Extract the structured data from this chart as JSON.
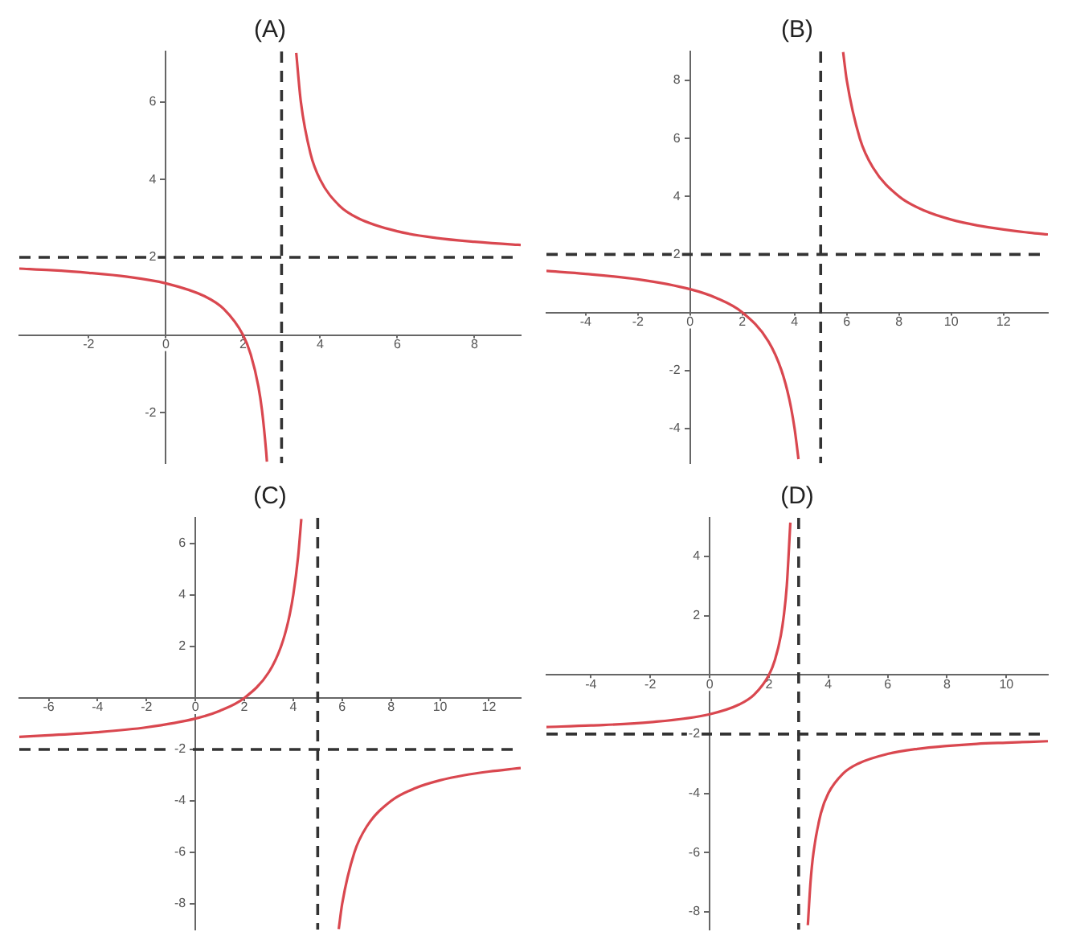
{
  "chart_data": [
    {
      "type": "line",
      "title": "(A)",
      "xlim": [
        -3.8,
        9.2
      ],
      "ylim": [
        -3.3,
        7.3
      ],
      "xticks": [
        -2,
        0,
        2,
        4,
        6,
        8
      ],
      "yticks": [
        -2,
        2,
        4,
        6
      ],
      "grid": false,
      "legend": false,
      "marker": "none",
      "line_style": "solid",
      "series": [
        {
          "color": "#d9474f",
          "x": [
            -3.8,
            -3,
            -2,
            -1,
            0,
            1,
            1.5,
            2,
            2.2,
            2.4,
            2.5,
            2.6,
            2.62
          ],
          "values": [
            1.71,
            1.67,
            1.6,
            1.5,
            1.33,
            1.0,
            0.67,
            0,
            -0.5,
            -1.33,
            -2,
            -3,
            -3.26
          ]
        },
        {
          "color": "#d9474f",
          "x": [
            3.38,
            3.5,
            3.75,
            4,
            4.5,
            5,
            6,
            7,
            8,
            9,
            9.2
          ],
          "values": [
            7.26,
            6,
            4.67,
            4,
            3.33,
            3,
            2.67,
            2.5,
            2.4,
            2.33,
            2.32
          ]
        }
      ],
      "ref_lines": [
        {
          "axis": "x",
          "value": 3,
          "color": "#333333",
          "line_style": "dashed"
        },
        {
          "axis": "y",
          "value": 2,
          "color": "#333333",
          "line_style": "dashed"
        }
      ]
    },
    {
      "type": "line",
      "title": "(B)",
      "xlim": [
        -5.5,
        13.7
      ],
      "ylim": [
        -5.2,
        9
      ],
      "xticks": [
        -4,
        -2,
        0,
        2,
        4,
        6,
        8,
        10,
        12
      ],
      "yticks": [
        -4,
        -2,
        2,
        4,
        6,
        8
      ],
      "grid": false,
      "legend": false,
      "marker": "none",
      "line_style": "solid",
      "series": [
        {
          "color": "#d9474f",
          "x": [
            -5.5,
            -4,
            -2,
            0,
            1,
            2,
            3,
            3.5,
            3.8,
            4,
            4.15
          ],
          "values": [
            1.43,
            1.33,
            1.14,
            0.8,
            0.5,
            0,
            -1,
            -2,
            -3,
            -4,
            -5.06
          ]
        },
        {
          "color": "#d9474f",
          "x": [
            5.86,
            6,
            6.5,
            7,
            8,
            9,
            10,
            11,
            12,
            13,
            13.7
          ],
          "values": [
            8.98,
            8,
            6,
            5,
            4,
            3.5,
            3.2,
            3,
            2.86,
            2.75,
            2.69
          ]
        }
      ],
      "ref_lines": [
        {
          "axis": "x",
          "value": 5,
          "color": "#333333",
          "line_style": "dashed"
        },
        {
          "axis": "y",
          "value": 2,
          "color": "#333333",
          "line_style": "dashed"
        }
      ]
    },
    {
      "type": "line",
      "title": "(C)",
      "xlim": [
        -7.2,
        13.3
      ],
      "ylim": [
        -9,
        7
      ],
      "xticks": [
        -6,
        -4,
        -2,
        0,
        2,
        4,
        6,
        8,
        10,
        12
      ],
      "yticks": [
        -8,
        -6,
        -4,
        -2,
        2,
        4,
        6
      ],
      "grid": false,
      "legend": false,
      "marker": "none",
      "line_style": "solid",
      "series": [
        {
          "color": "#d9474f",
          "x": [
            -7.2,
            -6,
            -4,
            -2,
            0,
            1,
            2,
            3,
            3.5,
            3.8,
            4,
            4.2,
            4.33
          ],
          "values": [
            -1.51,
            -1.45,
            -1.33,
            -1.14,
            -0.8,
            -0.5,
            0,
            1,
            2,
            3,
            4,
            5.5,
            6.96
          ]
        },
        {
          "color": "#d9474f",
          "x": [
            5.86,
            6,
            6.5,
            7,
            8,
            9,
            10,
            11,
            12,
            13,
            13.3
          ],
          "values": [
            -8.98,
            -8,
            -6,
            -5,
            -4,
            -3.5,
            -3.2,
            -3,
            -2.86,
            -2.75,
            -2.72
          ]
        }
      ],
      "ref_lines": [
        {
          "axis": "x",
          "value": 5,
          "color": "#333333",
          "line_style": "dashed"
        },
        {
          "axis": "y",
          "value": -2,
          "color": "#333333",
          "line_style": "dashed"
        }
      ]
    },
    {
      "type": "line",
      "title": "(D)",
      "xlim": [
        -5.5,
        11.4
      ],
      "ylim": [
        -8.6,
        5.3
      ],
      "xticks": [
        -4,
        -2,
        0,
        2,
        4,
        6,
        8,
        10
      ],
      "yticks": [
        -8,
        -6,
        -4,
        -2,
        2,
        4
      ],
      "grid": false,
      "legend": false,
      "marker": "none",
      "line_style": "solid",
      "series": [
        {
          "color": "#d9474f",
          "x": [
            -5.5,
            -4,
            -2,
            0,
            1,
            1.5,
            2,
            2.2,
            2.4,
            2.5,
            2.6,
            2.72
          ],
          "values": [
            -1.76,
            -1.71,
            -1.6,
            -1.33,
            -1,
            -0.67,
            0,
            0.5,
            1.33,
            2,
            3,
            5.14
          ]
        },
        {
          "color": "#d9474f",
          "x": [
            3.31,
            3.4,
            3.5,
            3.75,
            4,
            4.5,
            5,
            6,
            7,
            8,
            9,
            10,
            11.4
          ],
          "values": [
            -8.45,
            -7,
            -6,
            -4.67,
            -4,
            -3.33,
            -3,
            -2.67,
            -2.5,
            -2.4,
            -2.33,
            -2.29,
            -2.24
          ]
        }
      ],
      "ref_lines": [
        {
          "axis": "x",
          "value": 3,
          "color": "#333333",
          "line_style": "dashed"
        },
        {
          "axis": "y",
          "value": -2,
          "color": "#333333",
          "line_style": "dashed"
        }
      ]
    }
  ]
}
